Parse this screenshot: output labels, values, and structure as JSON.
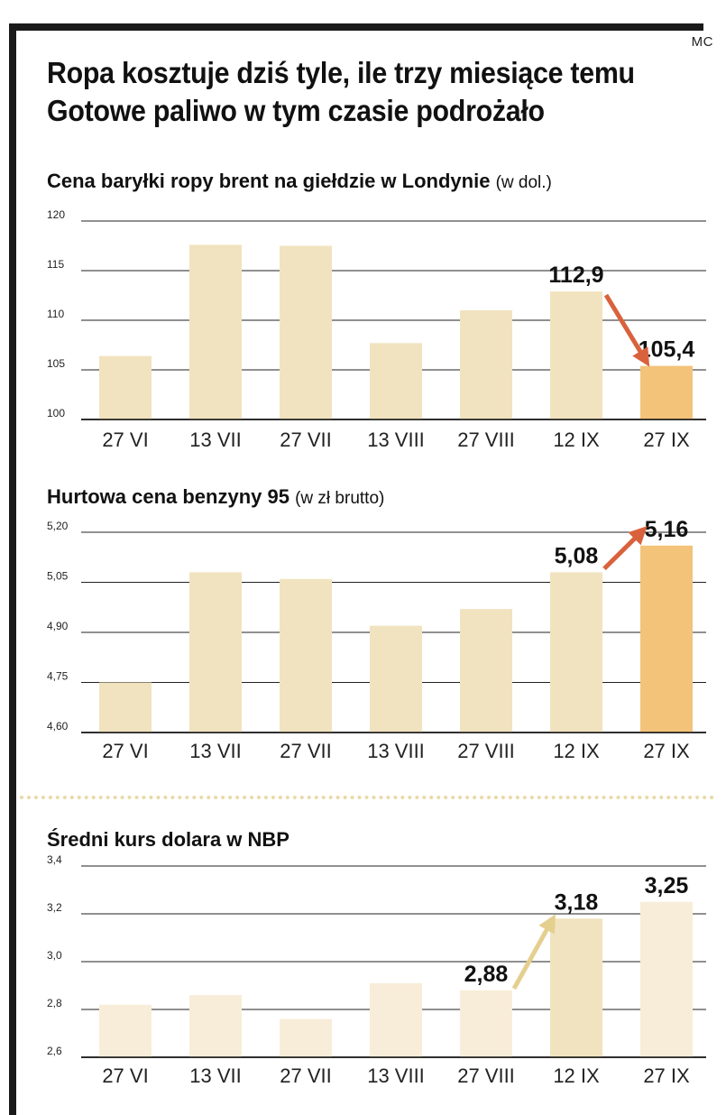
{
  "credit": "MC",
  "headline": {
    "line1": "Ropa kosztuje dziś tyle, ile trzy miesiące temu",
    "line2": "Gotowe paliwo w tym czasie podrożało"
  },
  "colors": {
    "bar_light": "#f1e3bf",
    "bar_highlight": "#f3c37a",
    "bar_pale": "#f8edd9",
    "bar_mid": "#f1e3bf",
    "arrow_red": "#d9623d",
    "arrow_gold": "#e5cf8e"
  },
  "chart_data": [
    {
      "type": "bar",
      "title": "Cena baryłki ropy brent na giełdzie w Londynie",
      "unit": "(w dol.)",
      "categories": [
        "27 VI",
        "13 VII",
        "27 VII",
        "13 VIII",
        "27 VIII",
        "12 IX",
        "27 IX"
      ],
      "values": [
        106.4,
        117.6,
        117.5,
        107.7,
        111.0,
        112.9,
        105.4
      ],
      "ylim": [
        100,
        120
      ],
      "yticks": [
        "100",
        "105",
        "110",
        "115",
        "120"
      ],
      "grid": true,
      "bar_colors": [
        "bar_light",
        "bar_light",
        "bar_light",
        "bar_light",
        "bar_light",
        "bar_light",
        "bar_highlight"
      ],
      "data_labels": [
        {
          "index": 5,
          "text": "112,9"
        },
        {
          "index": 6,
          "text": "105,4"
        }
      ],
      "arrow": {
        "from": 5,
        "to": 6,
        "color": "arrow_red"
      }
    },
    {
      "type": "bar",
      "title": "Hurtowa cena benzyny 95",
      "unit": "(w zł brutto)",
      "categories": [
        "27 VI",
        "13 VII",
        "27 VII",
        "13 VIII",
        "27 VIII",
        "12 IX",
        "27 IX"
      ],
      "values": [
        4.75,
        5.08,
        5.06,
        4.92,
        4.97,
        5.08,
        5.16
      ],
      "ylim": [
        4.6,
        5.2
      ],
      "yticks": [
        "4,60",
        "4,75",
        "4,90",
        "5,05",
        "5,20"
      ],
      "grid": true,
      "bar_colors": [
        "bar_light",
        "bar_light",
        "bar_light",
        "bar_light",
        "bar_light",
        "bar_light",
        "bar_highlight"
      ],
      "data_labels": [
        {
          "index": 5,
          "text": "5,08"
        },
        {
          "index": 6,
          "text": "5,16"
        }
      ],
      "arrow": {
        "from": 5,
        "to": 6,
        "color": "arrow_red"
      }
    },
    {
      "type": "bar",
      "title": "Średni kurs dolara w NBP",
      "unit": "",
      "categories": [
        "27 VI",
        "13 VII",
        "27 VII",
        "13 VIII",
        "27 VIII",
        "12 IX",
        "27 IX"
      ],
      "values": [
        2.82,
        2.86,
        2.76,
        2.91,
        2.88,
        3.18,
        3.25
      ],
      "ylim": [
        2.6,
        3.4
      ],
      "yticks": [
        "2,6",
        "2,8",
        "3,0",
        "3,2",
        "3,4"
      ],
      "grid": true,
      "bar_colors": [
        "bar_pale",
        "bar_pale",
        "bar_pale",
        "bar_pale",
        "bar_pale",
        "bar_mid",
        "bar_pale"
      ],
      "data_labels": [
        {
          "index": 4,
          "text": "2,88"
        },
        {
          "index": 5,
          "text": "3,18"
        },
        {
          "index": 6,
          "text": "3,25"
        }
      ],
      "arrow": {
        "from": 4,
        "to": 5,
        "color": "arrow_gold"
      }
    }
  ]
}
